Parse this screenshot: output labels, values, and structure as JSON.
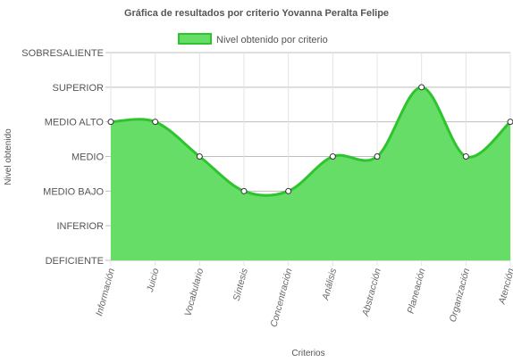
{
  "chart_data": {
    "type": "area",
    "title": "Gráfica de resultados por criterio Yovanna Peralta Felipe",
    "xlabel": "Criterios",
    "ylabel": "Nivel obtenido",
    "levels": [
      "DEFICIENTE",
      "INFERIOR",
      "MEDIO BAJO",
      "MEDIO",
      "MEDIO ALTO",
      "SUPERIOR",
      "SOBRESALIENTE"
    ],
    "categories": [
      "Información",
      "Juicio",
      "Vocabulario",
      "Síntesis",
      "Concentración",
      "Análisis",
      "Abstracción",
      "Planeación",
      "Organización",
      "Atención"
    ],
    "series": [
      {
        "name": "Nivel obtenido por criterio",
        "values": [
          "MEDIO ALTO",
          "MEDIO ALTO",
          "MEDIO",
          "MEDIO BAJO",
          "MEDIO BAJO",
          "MEDIO",
          "MEDIO",
          "SUPERIOR",
          "MEDIO",
          "MEDIO ALTO"
        ],
        "fill_color": "#66dd66",
        "line_color": "#2ec42e"
      }
    ],
    "legend_position": "top",
    "grid": true
  }
}
